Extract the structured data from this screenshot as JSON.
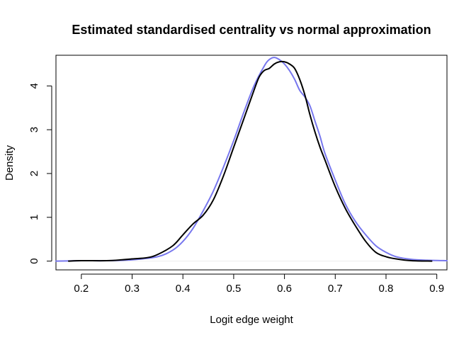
{
  "chart_data": {
    "type": "line",
    "title": "Estimated standardised centrality vs normal approximation",
    "xlabel": "Logit edge weight",
    "ylabel": "Density",
    "xlim": [
      0.15,
      0.92
    ],
    "ylim": [
      -0.2,
      4.7
    ],
    "xticks": [
      0.2,
      0.3,
      0.4,
      0.5,
      0.6,
      0.7,
      0.8,
      0.9
    ],
    "xtick_labels": [
      "0.2",
      "0.3",
      "0.4",
      "0.5",
      "0.6",
      "0.7",
      "0.8",
      "0.9"
    ],
    "yticks": [
      0,
      1,
      2,
      3,
      4
    ],
    "ytick_labels": [
      "0",
      "1",
      "2",
      "3",
      "4"
    ],
    "grid": false,
    "baseline": {
      "y": 0,
      "color": "#eeeeee"
    },
    "series": [
      {
        "color": "#7777ee",
        "x": [
          0.15,
          0.2,
          0.25,
          0.3,
          0.35,
          0.38,
          0.4,
          0.42,
          0.44,
          0.46,
          0.48,
          0.5,
          0.52,
          0.54,
          0.56,
          0.57,
          0.58,
          0.59,
          0.6,
          0.61,
          0.62,
          0.63,
          0.64,
          0.65,
          0.66,
          0.67,
          0.68,
          0.7,
          0.72,
          0.74,
          0.76,
          0.78,
          0.8,
          0.82,
          0.85,
          0.88,
          0.92
        ],
        "y": [
          0.0,
          0.01,
          0.01,
          0.03,
          0.1,
          0.25,
          0.45,
          0.75,
          1.15,
          1.6,
          2.15,
          2.75,
          3.4,
          4.0,
          4.45,
          4.6,
          4.65,
          4.6,
          4.5,
          4.35,
          4.15,
          3.9,
          3.75,
          3.55,
          3.2,
          2.85,
          2.45,
          1.85,
          1.3,
          0.9,
          0.6,
          0.35,
          0.2,
          0.1,
          0.04,
          0.02,
          0.01
        ]
      },
      {
        "color": "#000000",
        "x": [
          0.175,
          0.2,
          0.25,
          0.28,
          0.3,
          0.33,
          0.35,
          0.38,
          0.4,
          0.42,
          0.44,
          0.46,
          0.48,
          0.5,
          0.52,
          0.54,
          0.55,
          0.56,
          0.57,
          0.58,
          0.59,
          0.6,
          0.61,
          0.62,
          0.63,
          0.64,
          0.65,
          0.66,
          0.67,
          0.68,
          0.7,
          0.72,
          0.74,
          0.76,
          0.78,
          0.8,
          0.82,
          0.85,
          0.89
        ],
        "y": [
          0.0,
          0.01,
          0.01,
          0.03,
          0.05,
          0.08,
          0.15,
          0.35,
          0.6,
          0.85,
          1.05,
          1.4,
          1.95,
          2.6,
          3.25,
          3.9,
          4.2,
          4.35,
          4.4,
          4.5,
          4.55,
          4.55,
          4.5,
          4.4,
          4.15,
          3.8,
          3.35,
          2.95,
          2.6,
          2.3,
          1.7,
          1.2,
          0.8,
          0.45,
          0.2,
          0.1,
          0.05,
          0.01,
          0.0
        ]
      }
    ]
  }
}
